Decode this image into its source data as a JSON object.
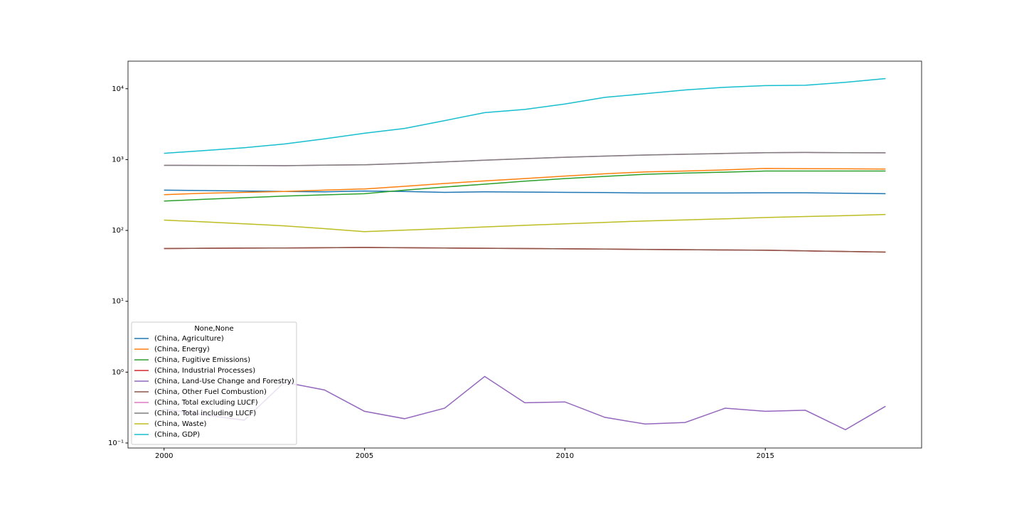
{
  "chart_data": {
    "type": "line",
    "log_y": true,
    "grid": false,
    "legend_loc": "lower left",
    "legend_title": "None,None",
    "x": [
      2000,
      2001,
      2002,
      2003,
      2004,
      2005,
      2006,
      2007,
      2008,
      2009,
      2010,
      2011,
      2012,
      2013,
      2014,
      2015,
      2016,
      2017,
      2018
    ],
    "xlim": [
      1999.1,
      2018.9
    ],
    "xticks": [
      2000,
      2005,
      2010,
      2015
    ],
    "ylim": [
      0.085,
      24500
    ],
    "yticks": [
      {
        "value": 0.1,
        "label": "10⁻¹"
      },
      {
        "value": 1,
        "label": "10⁰"
      },
      {
        "value": 10,
        "label": "10¹"
      },
      {
        "value": 100,
        "label": "10²"
      },
      {
        "value": 1000,
        "label": "10³"
      },
      {
        "value": 10000,
        "label": "10⁴"
      }
    ],
    "series": [
      {
        "name": "(China, Agriculture)",
        "color": "#1f77b4",
        "values": [
          370,
          365,
          360,
          355,
          350,
          360,
          355,
          345,
          350,
          348,
          345,
          342,
          338,
          338,
          338,
          340,
          340,
          335,
          330
        ]
      },
      {
        "name": "(China, Energy)",
        "color": "#ff7f0e",
        "values": [
          320,
          335,
          345,
          355,
          370,
          385,
          420,
          460,
          500,
          540,
          585,
          630,
          670,
          690,
          715,
          750,
          745,
          740,
          735
        ]
      },
      {
        "name": "(China, Fugitive Emissions)",
        "color": "#2ca02c",
        "values": [
          260,
          275,
          290,
          305,
          318,
          330,
          370,
          410,
          450,
          495,
          540,
          580,
          620,
          645,
          665,
          690,
          690,
          690,
          690
        ]
      },
      {
        "name": "(China, Industrial Processes)",
        "color": "#d62728",
        "values": [
          55.5,
          56,
          56.3,
          56.6,
          57,
          57.5,
          57,
          56.5,
          56,
          55.5,
          55,
          54.5,
          54,
          53.5,
          53,
          52.5,
          51.5,
          50.5,
          49.5
        ]
      },
      {
        "name": "(China, Land-Use Change and Forestry)",
        "color": "#9467bd",
        "values": [
          0.3,
          0.25,
          0.21,
          0.72,
          0.56,
          0.28,
          0.22,
          0.31,
          0.87,
          0.37,
          0.38,
          0.23,
          0.185,
          0.195,
          0.31,
          0.28,
          0.29,
          0.154,
          0.33
        ]
      },
      {
        "name": "(China, Other Fuel Combustion)",
        "color": "#8c564b",
        "values": [
          55.5,
          56,
          56.3,
          56.6,
          57,
          57.5,
          57,
          56.5,
          56,
          55.5,
          55,
          54.5,
          54,
          53.5,
          53,
          52.5,
          51.5,
          50.5,
          49.5
        ]
      },
      {
        "name": "(China, Total excluding LUCF)",
        "color": "#e377c2",
        "values": [
          830,
          828,
          825,
          820,
          835,
          845,
          880,
          930,
          980,
          1030,
          1080,
          1120,
          1160,
          1190,
          1220,
          1250,
          1260,
          1250,
          1245
        ]
      },
      {
        "name": "(China, Total including LUCF)",
        "color": "#7f7f7f",
        "values": [
          830,
          828,
          825,
          820,
          835,
          845,
          880,
          930,
          980,
          1030,
          1080,
          1120,
          1160,
          1190,
          1220,
          1250,
          1260,
          1250,
          1245
        ]
      },
      {
        "name": "(China, Waste)",
        "color": "#bcbd22",
        "values": [
          140,
          132,
          124,
          116,
          106,
          96,
          101,
          106,
          112,
          118,
          124,
          130,
          136,
          141,
          146,
          152,
          157,
          162,
          168
        ]
      },
      {
        "name": "(China, GDP)",
        "color": "#17becf",
        "values": [
          1227,
          1340,
          1470,
          1660,
          1960,
          2350,
          2750,
          3550,
          4600,
          5100,
          6100,
          7550,
          8500,
          9600,
          10500,
          11060,
          11200,
          12300,
          13900
        ]
      }
    ]
  }
}
